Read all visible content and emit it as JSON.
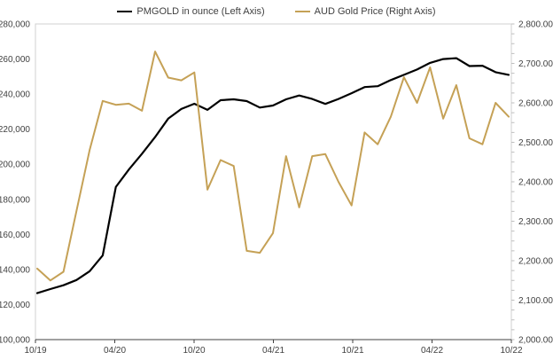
{
  "chart_data": {
    "type": "line",
    "title": "",
    "xlabel": "",
    "ylabel_left": "",
    "ylabel_right": "",
    "grid": false,
    "legend_position": "top",
    "x_visible_tick_labels": [
      "10/19",
      "04/20",
      "10/20",
      "04/21",
      "10/21",
      "04/22",
      "10/22"
    ],
    "x": [
      "10/19",
      "11/19",
      "12/19",
      "01/20",
      "02/20",
      "03/20",
      "04/20",
      "05/20",
      "06/20",
      "07/20",
      "08/20",
      "09/20",
      "10/20",
      "11/20",
      "12/20",
      "01/21",
      "02/21",
      "03/21",
      "04/21",
      "05/21",
      "06/21",
      "07/21",
      "08/21",
      "09/21",
      "10/21",
      "11/21",
      "12/21",
      "01/22",
      "02/22",
      "03/22",
      "04/22",
      "05/22",
      "06/22",
      "07/22",
      "08/22",
      "09/22",
      "10/22"
    ],
    "series": [
      {
        "name": "PMGOLD in ounce (Left Axis)",
        "axis": "left",
        "color": "#000000",
        "values": [
          126500,
          128800,
          131000,
          134000,
          139000,
          148000,
          187000,
          197000,
          206000,
          215500,
          226000,
          231500,
          234500,
          231000,
          236500,
          237000,
          236000,
          232300,
          233500,
          237000,
          239200,
          237200,
          234400,
          237200,
          240500,
          244000,
          244500,
          248000,
          251000,
          254000,
          257800,
          260000,
          260500,
          256000,
          256200,
          252500,
          251000
        ]
      },
      {
        "name": "AUD Gold Price (Right Axis)",
        "axis": "right",
        "color": "#C5A156",
        "values": [
          2180,
          2150,
          2172,
          2326,
          2480,
          2605,
          2595,
          2598,
          2580,
          2730,
          2664,
          2657,
          2677,
          2380,
          2455,
          2440,
          2225,
          2220,
          2270,
          2465,
          2335,
          2465,
          2470,
          2400,
          2340,
          2525,
          2495,
          2565,
          2665,
          2600,
          2690,
          2560,
          2645,
          2510,
          2495,
          2600,
          2565
        ]
      }
    ],
    "left_axis": {
      "min": 100000,
      "max": 280000,
      "step": 20000,
      "tick_labels": [
        "280,000",
        "260,000",
        "240,000",
        "220,000",
        "200,000",
        "180,000",
        "160,000",
        "140,000",
        "120,000",
        "100,000"
      ]
    },
    "right_axis": {
      "min": 2000,
      "max": 2800,
      "step": 100,
      "minor_tick_step": 25,
      "tick_labels": [
        "2,800.00",
        "2,700.00",
        "2,600.00",
        "2,500.00",
        "2,400.00",
        "2,300.00",
        "2,200.00",
        "2,100.00",
        "2,000.00"
      ]
    }
  },
  "legend": {
    "items": [
      {
        "label": "PMGOLD in ounce (Left Axis)",
        "color": "#000000"
      },
      {
        "label": "AUD Gold Price (Right Axis)",
        "color": "#C5A156"
      }
    ]
  },
  "colors": {
    "background": "#ffffff",
    "plot_border": "#D0D0D0",
    "x_axis_line": "#404040",
    "minor_tick": "#BFBFBF",
    "tick_text": "#404040",
    "series_black": "#000000",
    "series_gold": "#C5A156"
  }
}
